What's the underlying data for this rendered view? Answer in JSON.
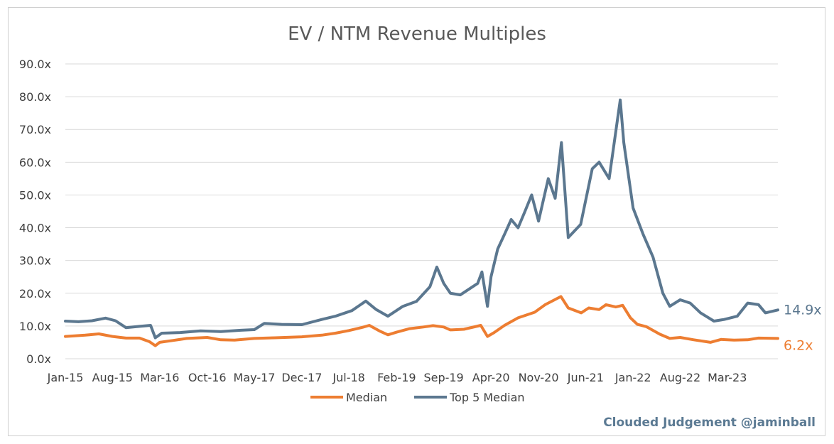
{
  "chart_data": {
    "type": "line",
    "title": "EV / NTM Revenue Multiples",
    "xlabel": "",
    "ylabel": "",
    "ylim": [
      0,
      90
    ],
    "yticks": [
      "0.0x",
      "10.0x",
      "20.0x",
      "30.0x",
      "40.0x",
      "50.0x",
      "60.0x",
      "70.0x",
      "80.0x",
      "90.0x"
    ],
    "xlim": [
      "2015-01-01",
      "2023-10-15"
    ],
    "xticks": [
      {
        "date": "2015-01-01",
        "label": "Jan-15"
      },
      {
        "date": "2015-08-01",
        "label": "Aug-15"
      },
      {
        "date": "2016-03-01",
        "label": "Mar-16"
      },
      {
        "date": "2016-10-01",
        "label": "Oct-16"
      },
      {
        "date": "2017-05-01",
        "label": "May-17"
      },
      {
        "date": "2017-12-01",
        "label": "Dec-17"
      },
      {
        "date": "2018-07-01",
        "label": "Jul-18"
      },
      {
        "date": "2019-02-01",
        "label": "Feb-19"
      },
      {
        "date": "2019-09-01",
        "label": "Sep-19"
      },
      {
        "date": "2020-04-01",
        "label": "Apr-20"
      },
      {
        "date": "2020-11-01",
        "label": "Nov-20"
      },
      {
        "date": "2021-06-01",
        "label": "Jun-21"
      },
      {
        "date": "2022-01-01",
        "label": "Jan-22"
      },
      {
        "date": "2022-08-01",
        "label": "Aug-22"
      },
      {
        "date": "2023-03-01",
        "label": "Mar-23"
      }
    ],
    "grid": true,
    "legend_position": "bottom",
    "series": [
      {
        "name": "Median",
        "color": "#ed7d31",
        "end_label": "6.2x",
        "points": [
          [
            "2015-01-01",
            6.8
          ],
          [
            "2015-04-01",
            7.2
          ],
          [
            "2015-06-01",
            7.6
          ],
          [
            "2015-08-01",
            6.8
          ],
          [
            "2015-10-01",
            6.3
          ],
          [
            "2015-12-01",
            6.3
          ],
          [
            "2016-01-15",
            5.2
          ],
          [
            "2016-02-10",
            4.0
          ],
          [
            "2016-03-01",
            5.0
          ],
          [
            "2016-05-01",
            5.6
          ],
          [
            "2016-07-01",
            6.2
          ],
          [
            "2016-10-01",
            6.5
          ],
          [
            "2016-12-01",
            5.8
          ],
          [
            "2017-02-01",
            5.7
          ],
          [
            "2017-05-01",
            6.2
          ],
          [
            "2017-08-01",
            6.4
          ],
          [
            "2017-12-01",
            6.7
          ],
          [
            "2018-03-01",
            7.2
          ],
          [
            "2018-05-01",
            7.8
          ],
          [
            "2018-07-01",
            8.6
          ],
          [
            "2018-09-01",
            9.6
          ],
          [
            "2018-10-01",
            10.2
          ],
          [
            "2018-11-15",
            8.5
          ],
          [
            "2018-12-24",
            7.3
          ],
          [
            "2019-02-01",
            8.1
          ],
          [
            "2019-04-01",
            9.2
          ],
          [
            "2019-06-01",
            9.7
          ],
          [
            "2019-07-15",
            10.1
          ],
          [
            "2019-09-01",
            9.7
          ],
          [
            "2019-10-01",
            8.8
          ],
          [
            "2019-12-01",
            9.0
          ],
          [
            "2020-02-15",
            10.2
          ],
          [
            "2020-03-16",
            6.8
          ],
          [
            "2020-04-15",
            8.0
          ],
          [
            "2020-06-01",
            10.2
          ],
          [
            "2020-08-01",
            12.5
          ],
          [
            "2020-09-01",
            13.2
          ],
          [
            "2020-10-15",
            14.2
          ],
          [
            "2020-12-01",
            16.5
          ],
          [
            "2021-02-10",
            19.0
          ],
          [
            "2021-03-15",
            15.5
          ],
          [
            "2021-05-12",
            14.0
          ],
          [
            "2021-06-15",
            15.5
          ],
          [
            "2021-08-01",
            15.0
          ],
          [
            "2021-09-01",
            16.5
          ],
          [
            "2021-10-15",
            15.8
          ],
          [
            "2021-11-15",
            16.3
          ],
          [
            "2021-12-20",
            12.5
          ],
          [
            "2022-01-20",
            10.5
          ],
          [
            "2022-03-01",
            9.8
          ],
          [
            "2022-05-01",
            7.5
          ],
          [
            "2022-06-15",
            6.2
          ],
          [
            "2022-08-01",
            6.5
          ],
          [
            "2022-10-01",
            5.8
          ],
          [
            "2022-12-15",
            5.0
          ],
          [
            "2023-02-01",
            5.9
          ],
          [
            "2023-04-01",
            5.7
          ],
          [
            "2023-06-01",
            5.8
          ],
          [
            "2023-07-20",
            6.3
          ],
          [
            "2023-10-15",
            6.2
          ]
        ]
      },
      {
        "name": "Top 5 Median",
        "color": "#5b778f",
        "end_label": "14.9x",
        "points": [
          [
            "2015-01-01",
            11.5
          ],
          [
            "2015-03-01",
            11.3
          ],
          [
            "2015-05-01",
            11.6
          ],
          [
            "2015-07-01",
            12.4
          ],
          [
            "2015-08-15",
            11.6
          ],
          [
            "2015-10-01",
            9.5
          ],
          [
            "2015-12-01",
            9.9
          ],
          [
            "2016-01-20",
            10.2
          ],
          [
            "2016-02-10",
            6.4
          ],
          [
            "2016-03-10",
            7.8
          ],
          [
            "2016-06-01",
            8.0
          ],
          [
            "2016-09-01",
            8.5
          ],
          [
            "2016-12-01",
            8.3
          ],
          [
            "2017-03-01",
            8.7
          ],
          [
            "2017-05-01",
            8.9
          ],
          [
            "2017-06-15",
            10.8
          ],
          [
            "2017-09-01",
            10.5
          ],
          [
            "2017-12-01",
            10.4
          ],
          [
            "2018-03-01",
            12.0
          ],
          [
            "2018-05-01",
            13.0
          ],
          [
            "2018-07-15",
            14.7
          ],
          [
            "2018-09-15",
            17.6
          ],
          [
            "2018-11-01",
            15.0
          ],
          [
            "2018-12-24",
            13.0
          ],
          [
            "2019-03-01",
            16.0
          ],
          [
            "2019-05-01",
            17.5
          ],
          [
            "2019-07-01",
            22.0
          ],
          [
            "2019-08-01",
            28.0
          ],
          [
            "2019-09-01",
            23.0
          ],
          [
            "2019-10-01",
            20.0
          ],
          [
            "2019-11-15",
            19.5
          ],
          [
            "2020-02-01",
            23.0
          ],
          [
            "2020-02-20",
            26.5
          ],
          [
            "2020-03-16",
            16.0
          ],
          [
            "2020-04-01",
            25.0
          ],
          [
            "2020-05-01",
            33.5
          ],
          [
            "2020-06-01",
            38.0
          ],
          [
            "2020-07-01",
            42.5
          ],
          [
            "2020-08-01",
            40.0
          ],
          [
            "2020-09-01",
            45.0
          ],
          [
            "2020-10-01",
            50.0
          ],
          [
            "2020-11-01",
            42.0
          ],
          [
            "2020-12-15",
            55.0
          ],
          [
            "2021-01-15",
            49.0
          ],
          [
            "2021-02-12",
            66.0
          ],
          [
            "2021-03-15",
            37.0
          ],
          [
            "2021-05-10",
            41.0
          ],
          [
            "2021-07-01",
            58.0
          ],
          [
            "2021-08-01",
            60.0
          ],
          [
            "2021-09-15",
            55.0
          ],
          [
            "2021-11-04",
            79.0
          ],
          [
            "2021-11-20",
            66.0
          ],
          [
            "2022-01-01",
            46.0
          ],
          [
            "2022-02-15",
            38.0
          ],
          [
            "2022-04-01",
            31.0
          ],
          [
            "2022-05-15",
            20.0
          ],
          [
            "2022-06-15",
            16.0
          ],
          [
            "2022-08-01",
            18.0
          ],
          [
            "2022-09-15",
            17.0
          ],
          [
            "2022-11-01",
            14.0
          ],
          [
            "2022-12-31",
            11.5
          ],
          [
            "2023-02-15",
            12.0
          ],
          [
            "2023-04-15",
            13.0
          ],
          [
            "2023-06-01",
            17.0
          ],
          [
            "2023-07-20",
            16.5
          ],
          [
            "2023-08-20",
            14.0
          ],
          [
            "2023-10-15",
            14.9
          ]
        ]
      }
    ]
  },
  "watermark": "Clouded Judgement @jaminball"
}
